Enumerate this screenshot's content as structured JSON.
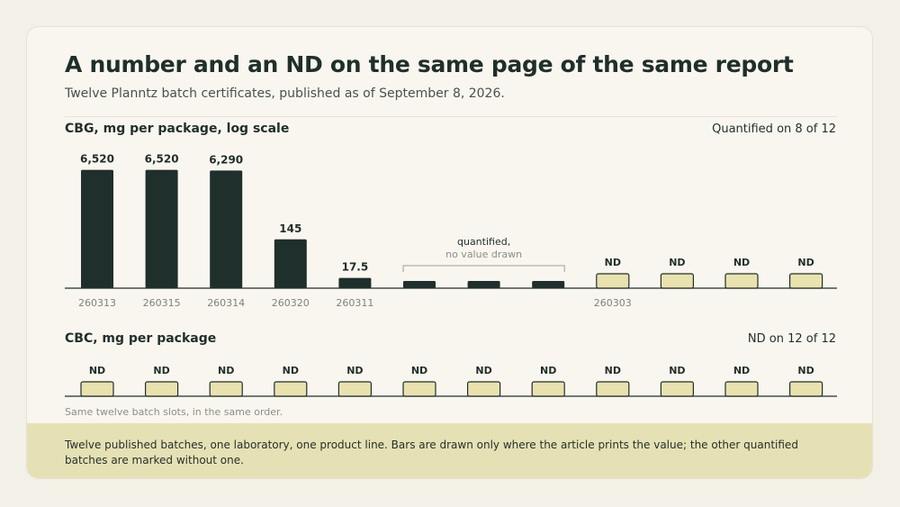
{
  "title": "A number and an ND on the same page of the same report",
  "subtitle": "Twelve Planntz batch certificates, published as of September 8, 2026.",
  "colors": {
    "bar": "#1f2f2b",
    "nd_fill": "#e9e2ae",
    "nd_stroke": "#1f2f2b",
    "card_bg": "#f9f6ef",
    "footer_bg": "#e6e1b4"
  },
  "chart_data": [
    {
      "type": "bar",
      "title": "CBG, mg per package, log scale",
      "count_label": "Quantified on 8 of 12",
      "scale": "log",
      "batches": [
        {
          "label": "260313",
          "status": "value",
          "value": 6520,
          "value_label": "6,520"
        },
        {
          "label": "260315",
          "status": "value",
          "value": 6520,
          "value_label": "6,520"
        },
        {
          "label": "260314",
          "status": "value",
          "value": 6290,
          "value_label": "6,290"
        },
        {
          "label": "260320",
          "status": "value",
          "value": 145,
          "value_label": "145"
        },
        {
          "label": "260311",
          "status": "value",
          "value": 17.5,
          "value_label": "17.5"
        },
        {
          "label": "",
          "status": "quantified_no_value"
        },
        {
          "label": "",
          "status": "quantified_no_value"
        },
        {
          "label": "",
          "status": "quantified_no_value"
        },
        {
          "label": "260303",
          "status": "nd",
          "value_label": "ND"
        },
        {
          "label": "",
          "status": "nd",
          "value_label": "ND"
        },
        {
          "label": "",
          "status": "nd",
          "value_label": "ND"
        },
        {
          "label": "",
          "status": "nd",
          "value_label": "ND"
        }
      ],
      "annotation": {
        "line1": "quantified,",
        "line2": "no value drawn"
      }
    },
    {
      "type": "bar",
      "title": "CBC, mg per package",
      "count_label": "ND on 12 of 12",
      "batches": [
        {
          "status": "nd",
          "value_label": "ND"
        },
        {
          "status": "nd",
          "value_label": "ND"
        },
        {
          "status": "nd",
          "value_label": "ND"
        },
        {
          "status": "nd",
          "value_label": "ND"
        },
        {
          "status": "nd",
          "value_label": "ND"
        },
        {
          "status": "nd",
          "value_label": "ND"
        },
        {
          "status": "nd",
          "value_label": "ND"
        },
        {
          "status": "nd",
          "value_label": "ND"
        },
        {
          "status": "nd",
          "value_label": "ND"
        },
        {
          "status": "nd",
          "value_label": "ND"
        },
        {
          "status": "nd",
          "value_label": "ND"
        },
        {
          "status": "nd",
          "value_label": "ND"
        }
      ]
    }
  ],
  "note": "Same twelve batch slots, in the same order.",
  "footer": "Twelve published batches, one laboratory, one product line. Bars are drawn only where the article prints the value; the other quantified batches are marked without one."
}
